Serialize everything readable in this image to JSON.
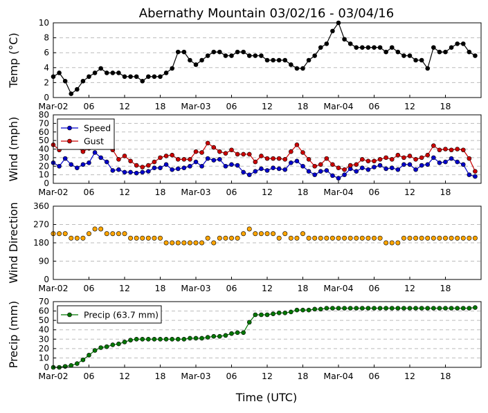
{
  "title": "Abernathy Mountain 03/02/16 - 03/04/16",
  "x_axis_label": "Time (UTC)",
  "x_tick_labels": [
    "Mar-02",
    "06",
    "12",
    "18",
    "Mar-03",
    "06",
    "12",
    "18",
    "Mar-04",
    "06",
    "12",
    "18"
  ],
  "colors": {
    "temp": "#000000",
    "speed": "#0000cc",
    "gust": "#cc0000",
    "direction": "#ffa500",
    "precip": "#007700",
    "grid": "#bbbbbb"
  },
  "chart_data": [
    {
      "type": "line",
      "ylabel": "Temp ($^{\\circ}$C)",
      "ylabel_display": "Temp (°C)",
      "ylim": [
        0,
        10
      ],
      "yticks": [
        "0",
        "2",
        "4",
        "6",
        "8",
        "10"
      ],
      "x_hours_start": 0,
      "x_hours_step": 1,
      "series": [
        {
          "values": [
            2.8,
            3.3,
            2.2,
            0.5,
            1.1,
            2.2,
            2.8,
            3.3,
            3.9,
            3.3,
            3.3,
            3.3,
            2.8,
            2.8,
            2.8,
            2.2,
            2.8,
            2.8,
            2.8,
            3.3,
            3.9,
            6.1,
            6.1,
            5.0,
            4.4,
            5.0,
            5.6,
            6.1,
            6.1,
            5.6,
            5.6,
            6.1,
            6.1,
            5.6,
            5.6,
            5.6,
            5.0,
            5.0,
            5.0,
            5.0,
            4.4,
            3.9,
            3.9,
            5.0,
            5.6,
            6.7,
            7.2,
            8.9,
            10.0,
            7.8,
            7.2,
            6.7,
            6.7,
            6.7,
            6.7,
            6.7,
            6.1,
            6.7,
            6.1,
            5.6,
            5.6,
            5.0,
            5.0,
            3.9,
            6.7,
            6.1,
            6.1,
            6.7,
            7.2,
            7.2,
            6.1,
            5.6
          ]
        }
      ]
    },
    {
      "type": "line",
      "ylabel": "Wind (mph)",
      "ylim": [
        0,
        80
      ],
      "yticks": [
        "0",
        "10",
        "20",
        "30",
        "40",
        "50",
        "60",
        "70",
        "80"
      ],
      "legend": "upper-left",
      "series": [
        {
          "name": "Speed",
          "values": [
            24,
            20,
            29,
            22,
            18,
            22,
            24,
            36,
            30,
            25,
            15,
            16,
            13,
            13,
            12,
            13,
            14,
            18,
            18,
            22,
            16,
            17,
            18,
            20,
            25,
            20,
            29,
            27,
            28,
            20,
            22,
            21,
            13,
            10,
            14,
            17,
            15,
            18,
            17,
            16,
            24,
            26,
            20,
            14,
            10,
            14,
            15,
            9,
            6,
            10,
            17,
            14,
            18,
            16,
            19,
            21,
            17,
            18,
            16,
            22,
            22,
            16,
            21,
            22,
            30,
            24,
            25,
            29,
            25,
            22,
            10,
            8
          ]
        },
        {
          "name": "Gust",
          "values": [
            45,
            39,
            null,
            null,
            42,
            37,
            41,
            null,
            null,
            null,
            39,
            28,
            32,
            26,
            21,
            19,
            21,
            25,
            30,
            32,
            33,
            28,
            28,
            28,
            37,
            36,
            47,
            42,
            37,
            35,
            39,
            34,
            34,
            34,
            25,
            32,
            29,
            29,
            29,
            28,
            37,
            45,
            36,
            28,
            20,
            22,
            29,
            22,
            18,
            16,
            21,
            22,
            28,
            26,
            26,
            28,
            30,
            28,
            33,
            30,
            32,
            28,
            30,
            33,
            44,
            39,
            40,
            39,
            40,
            39,
            29,
            14
          ]
        }
      ]
    },
    {
      "type": "scatter",
      "ylabel": "Wind Direction",
      "ylim": [
        0,
        360
      ],
      "yticks": [
        "0",
        "90",
        "180",
        "270",
        "360"
      ],
      "series": [
        {
          "values": [
            225,
            225,
            225,
            203,
            203,
            203,
            225,
            248,
            248,
            225,
            225,
            225,
            225,
            203,
            203,
            203,
            203,
            203,
            203,
            180,
            180,
            180,
            180,
            180,
            180,
            180,
            203,
            180,
            203,
            203,
            203,
            203,
            225,
            248,
            225,
            225,
            225,
            225,
            203,
            225,
            203,
            203,
            225,
            203,
            203,
            203,
            203,
            203,
            203,
            203,
            203,
            203,
            203,
            203,
            203,
            203,
            180,
            180,
            180,
            203,
            203,
            203,
            203,
            203,
            203,
            203,
            203,
            203,
            203,
            203,
            203,
            203
          ]
        }
      ]
    },
    {
      "type": "line",
      "ylabel": "Precip (mm)",
      "ylim": [
        0,
        70
      ],
      "yticks": [
        "0",
        "10",
        "20",
        "30",
        "40",
        "50",
        "60",
        "70"
      ],
      "legend": "upper-left",
      "series": [
        {
          "name": "Precip (63.7 mm)",
          "values": [
            0,
            0,
            1,
            2,
            4,
            8,
            13,
            18,
            21,
            22,
            24,
            25,
            27,
            29,
            30,
            30,
            30,
            30,
            30,
            30,
            30,
            30,
            30,
            31,
            31,
            31,
            32,
            33,
            33,
            34,
            36,
            37,
            37,
            48,
            56,
            56,
            56,
            57,
            58,
            58,
            59,
            61,
            61,
            61,
            62,
            62,
            63,
            63,
            63,
            63,
            63,
            63,
            63,
            63,
            63,
            63,
            63,
            63,
            63,
            63,
            63,
            63,
            63,
            63,
            63,
            63,
            63,
            63,
            63,
            63,
            63,
            63.7
          ]
        }
      ]
    }
  ]
}
